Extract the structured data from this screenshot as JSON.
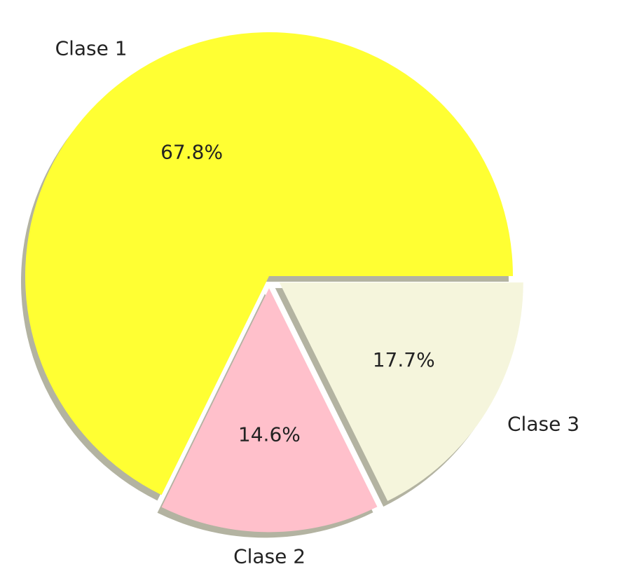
{
  "chart_data": {
    "type": "pie",
    "slices": [
      {
        "label": "Clase 1",
        "value": 67.8,
        "pct_text": "67.8%",
        "color": "#ffff33",
        "explode": 0.0
      },
      {
        "label": "Clase 2",
        "value": 14.6,
        "pct_text": "14.6%",
        "color": "#ffc0cb",
        "explode": 0.05
      },
      {
        "label": "Clase 3",
        "value": 17.7,
        "pct_text": "17.7%",
        "color": "#f5f5dc",
        "explode": 0.05
      }
    ],
    "start_angle": 0,
    "direction": "counterclockwise",
    "shadow": true
  }
}
